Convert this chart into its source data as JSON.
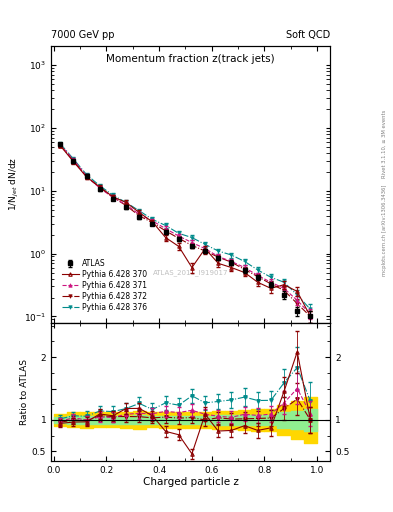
{
  "title_main": "Momentum fraction z(track jets)",
  "header_left": "7000 GeV pp",
  "header_right": "Soft QCD",
  "ylabel_main": "1/N$_{jet}$ dN/dz",
  "ylabel_ratio": "Ratio to ATLAS",
  "xlabel": "Charged particle z",
  "watermark": "ATLAS_2011_I919017",
  "right_label_top": "Rivet 3.1.10, ≥ 3M events",
  "right_label_bot": "mcplots.cern.ch [arXiv:1306.3436]",
  "ylim_main": [
    0.08,
    2000
  ],
  "ylim_ratio": [
    0.35,
    2.55
  ],
  "xlim": [
    -0.01,
    1.05
  ],
  "atlas_color": "#000000",
  "p370_color": "#8B0000",
  "p371_color": "#CC1480",
  "p372_color": "#8B0000",
  "p376_color": "#008B8B",
  "band_green": "#90EE90",
  "band_yellow": "#FFD700",
  "x_atlas": [
    0.025,
    0.075,
    0.125,
    0.175,
    0.225,
    0.275,
    0.325,
    0.375,
    0.425,
    0.475,
    0.525,
    0.575,
    0.625,
    0.675,
    0.725,
    0.775,
    0.825,
    0.875,
    0.925,
    0.975
  ],
  "y_atlas": [
    55,
    30,
    17,
    10.5,
    7.5,
    5.5,
    3.8,
    3.0,
    2.2,
    1.7,
    1.3,
    1.1,
    0.85,
    0.72,
    0.55,
    0.42,
    0.32,
    0.22,
    0.12,
    0.1
  ],
  "y_atlas_err": [
    3,
    2,
    1.2,
    0.7,
    0.5,
    0.4,
    0.3,
    0.2,
    0.15,
    0.12,
    0.09,
    0.08,
    0.07,
    0.06,
    0.05,
    0.04,
    0.03,
    0.03,
    0.02,
    0.02
  ],
  "x_p370": [
    0.025,
    0.075,
    0.125,
    0.175,
    0.225,
    0.275,
    0.325,
    0.375,
    0.425,
    0.475,
    0.525,
    0.575,
    0.625,
    0.675,
    0.725,
    0.775,
    0.825,
    0.875,
    0.925,
    0.975
  ],
  "y_p370": [
    52,
    29,
    16.5,
    11.5,
    8.0,
    6.5,
    4.5,
    3.2,
    1.8,
    1.3,
    0.6,
    1.2,
    0.7,
    0.6,
    0.5,
    0.35,
    0.28,
    0.32,
    0.25,
    0.1
  ],
  "y_p370_err": [
    3,
    2,
    1.2,
    0.8,
    0.6,
    0.5,
    0.35,
    0.25,
    0.2,
    0.15,
    0.1,
    0.12,
    0.08,
    0.07,
    0.06,
    0.05,
    0.04,
    0.05,
    0.04,
    0.02
  ],
  "x_p371": [
    0.025,
    0.075,
    0.125,
    0.175,
    0.225,
    0.275,
    0.325,
    0.375,
    0.425,
    0.475,
    0.525,
    0.575,
    0.625,
    0.675,
    0.725,
    0.775,
    0.825,
    0.875,
    0.925,
    0.975
  ],
  "y_p371": [
    54,
    31,
    17,
    11,
    7.8,
    6.0,
    4.2,
    3.3,
    2.5,
    1.9,
    1.5,
    1.2,
    0.9,
    0.75,
    0.6,
    0.45,
    0.35,
    0.28,
    0.18,
    0.11
  ],
  "y_p371_err": [
    3,
    2,
    1.2,
    0.8,
    0.6,
    0.5,
    0.35,
    0.25,
    0.2,
    0.15,
    0.12,
    0.1,
    0.08,
    0.07,
    0.06,
    0.05,
    0.04,
    0.04,
    0.03,
    0.02
  ],
  "x_p372": [
    0.025,
    0.075,
    0.125,
    0.175,
    0.225,
    0.275,
    0.325,
    0.375,
    0.425,
    0.475,
    0.525,
    0.575,
    0.625,
    0.675,
    0.725,
    0.775,
    0.825,
    0.875,
    0.925,
    0.975
  ],
  "y_p372": [
    53,
    30,
    16.8,
    11.2,
    7.9,
    5.8,
    4.0,
    3.1,
    2.3,
    1.75,
    1.35,
    1.1,
    0.88,
    0.73,
    0.56,
    0.43,
    0.33,
    0.26,
    0.16,
    0.1
  ],
  "y_p372_err": [
    3,
    2,
    1.2,
    0.8,
    0.6,
    0.5,
    0.35,
    0.25,
    0.2,
    0.15,
    0.12,
    0.1,
    0.08,
    0.07,
    0.06,
    0.05,
    0.04,
    0.04,
    0.03,
    0.02
  ],
  "x_p376": [
    0.025,
    0.075,
    0.125,
    0.175,
    0.225,
    0.275,
    0.325,
    0.375,
    0.425,
    0.475,
    0.525,
    0.575,
    0.625,
    0.675,
    0.725,
    0.775,
    0.825,
    0.875,
    0.925,
    0.975
  ],
  "y_p376": [
    56,
    32,
    18,
    12,
    8.5,
    6.5,
    4.8,
    3.5,
    2.8,
    2.1,
    1.8,
    1.4,
    1.1,
    0.95,
    0.75,
    0.55,
    0.42,
    0.35,
    0.22,
    0.13
  ],
  "y_p376_err": [
    3,
    2,
    1.3,
    0.9,
    0.7,
    0.5,
    0.4,
    0.3,
    0.25,
    0.2,
    0.15,
    0.12,
    0.1,
    0.09,
    0.08,
    0.06,
    0.05,
    0.05,
    0.04,
    0.03
  ]
}
